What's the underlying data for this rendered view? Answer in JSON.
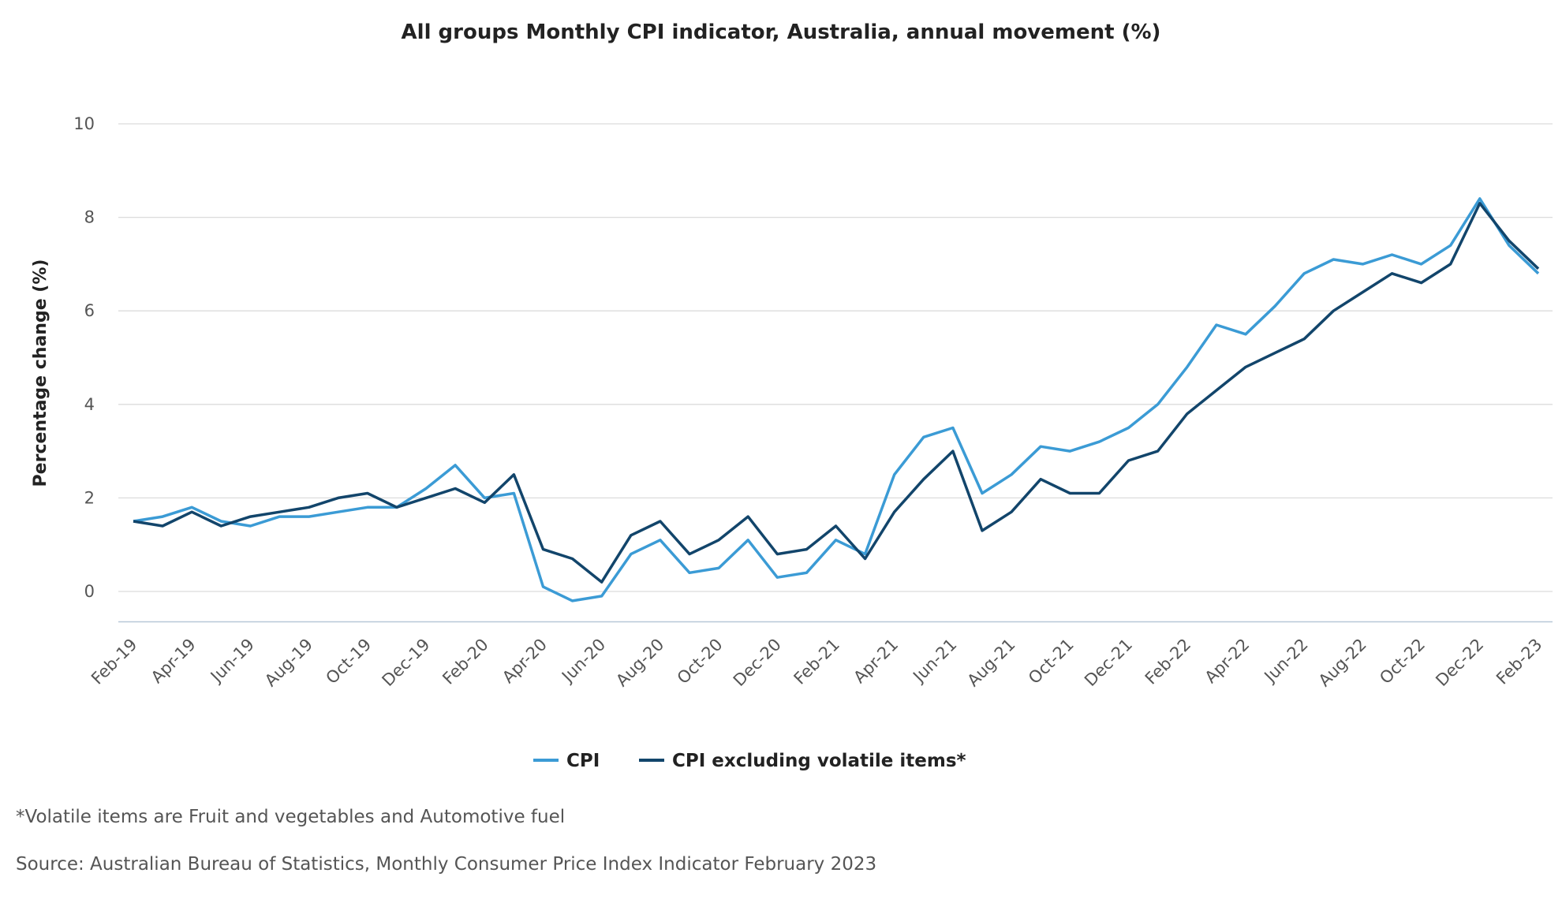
{
  "chart_data": {
    "type": "line",
    "title": "All groups Monthly CPI indicator, Australia, annual movement (%)",
    "ylabel": "Percentage change (%)",
    "xlabel": "",
    "ylim": [
      -0.65,
      10
    ],
    "yticks": [
      0,
      2,
      4,
      6,
      8,
      10
    ],
    "grid": true,
    "legend_position": "bottom",
    "x": [
      "Feb-19",
      "Mar-19",
      "Apr-19",
      "May-19",
      "Jun-19",
      "Jul-19",
      "Aug-19",
      "Sep-19",
      "Oct-19",
      "Nov-19",
      "Dec-19",
      "Jan-20",
      "Feb-20",
      "Mar-20",
      "Apr-20",
      "May-20",
      "Jun-20",
      "Jul-20",
      "Aug-20",
      "Sep-20",
      "Oct-20",
      "Nov-20",
      "Dec-20",
      "Jan-21",
      "Feb-21",
      "Mar-21",
      "Apr-21",
      "May-21",
      "Jun-21",
      "Jul-21",
      "Aug-21",
      "Sep-21",
      "Oct-21",
      "Nov-21",
      "Dec-21",
      "Jan-22",
      "Feb-22",
      "Mar-22",
      "Apr-22",
      "May-22",
      "Jun-22",
      "Jul-22",
      "Aug-22",
      "Sep-22",
      "Oct-22",
      "Nov-22",
      "Dec-22",
      "Jan-23",
      "Feb-23"
    ],
    "xtick_labels": [
      "Feb-19",
      "Apr-19",
      "Jun-19",
      "Aug-19",
      "Oct-19",
      "Dec-19",
      "Feb-20",
      "Apr-20",
      "Jun-20",
      "Aug-20",
      "Oct-20",
      "Dec-20",
      "Feb-21",
      "Apr-21",
      "Jun-21",
      "Aug-21",
      "Oct-21",
      "Dec-21",
      "Feb-22",
      "Apr-22",
      "Jun-22",
      "Aug-22",
      "Oct-22",
      "Dec-22",
      "Feb-23"
    ],
    "series": [
      {
        "name": "CPI",
        "color": "#3b9bd5",
        "values": [
          1.5,
          1.6,
          1.8,
          1.5,
          1.4,
          1.6,
          1.6,
          1.7,
          1.8,
          1.8,
          2.2,
          2.7,
          2.0,
          2.1,
          0.1,
          -0.2,
          -0.1,
          0.8,
          1.1,
          0.4,
          0.5,
          1.1,
          0.3,
          0.4,
          1.1,
          0.8,
          2.5,
          3.3,
          3.5,
          2.1,
          2.5,
          3.1,
          3.0,
          3.2,
          3.5,
          4.0,
          4.8,
          5.7,
          5.5,
          6.1,
          6.8,
          7.1,
          7.0,
          7.2,
          7.0,
          7.4,
          8.4,
          7.4,
          6.8
        ]
      },
      {
        "name": "CPI excluding volatile items*",
        "color": "#12456b",
        "values": [
          1.5,
          1.4,
          1.7,
          1.4,
          1.6,
          1.7,
          1.8,
          2.0,
          2.1,
          1.8,
          2.0,
          2.2,
          1.9,
          2.5,
          0.9,
          0.7,
          0.2,
          1.2,
          1.5,
          0.8,
          1.1,
          1.6,
          0.8,
          0.9,
          1.4,
          0.7,
          1.7,
          2.4,
          3.0,
          1.3,
          1.7,
          2.4,
          2.1,
          2.1,
          2.8,
          3.0,
          3.8,
          4.3,
          4.8,
          5.1,
          5.4,
          6.0,
          6.4,
          6.8,
          6.6,
          7.0,
          8.3,
          7.5,
          6.9
        ]
      }
    ]
  },
  "footnote": "*Volatile items are Fruit and vegetables and Automotive fuel",
  "source": "Source: Australian Bureau of Statistics, Monthly Consumer Price Index Indicator February 2023"
}
